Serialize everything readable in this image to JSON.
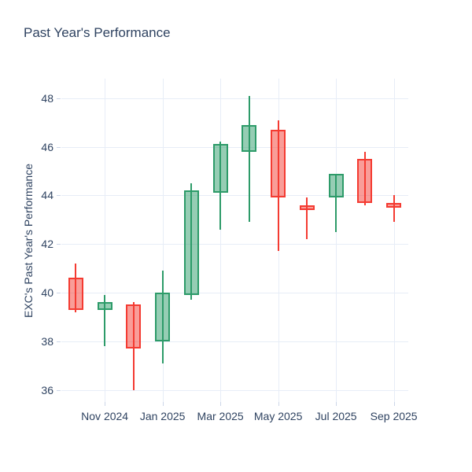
{
  "title": "Past Year's Performance",
  "colors": {
    "background": "#ffffff",
    "text": "#2f4361",
    "gridline": "#e7edf7",
    "tick": "#ccd6e8",
    "increasing_line": "#2d9b69",
    "increasing_fill": "rgba(45,155,105,0.5)",
    "decreasing_line": "#f43b32",
    "decreasing_fill": "rgba(244,59,50,0.5)"
  },
  "chart_data": {
    "type": "candlestick",
    "title": "Past Year's Performance",
    "xlabel": "",
    "ylabel": "EXC's Past Year's Performance",
    "ylim": [
      35.5,
      48.8
    ],
    "y_ticks": [
      36,
      38,
      40,
      42,
      44,
      46,
      48
    ],
    "x_ticks": [
      {
        "label": "Nov 2024",
        "month_index": 1
      },
      {
        "label": "Jan 2025",
        "month_index": 3
      },
      {
        "label": "Mar 2025",
        "month_index": 5
      },
      {
        "label": "May 2025",
        "month_index": 7
      },
      {
        "label": "Jul 2025",
        "month_index": 9
      },
      {
        "label": "Sep 2025",
        "month_index": 11
      }
    ],
    "grid": true,
    "legend": "none",
    "candles": [
      {
        "month": "Oct 2024",
        "open": 40.6,
        "high": 41.2,
        "low": 39.2,
        "close": 39.3,
        "direction": "down"
      },
      {
        "month": "Nov 2024",
        "open": 39.3,
        "high": 39.9,
        "low": 37.8,
        "close": 39.6,
        "direction": "up"
      },
      {
        "month": "Dec 2024",
        "open": 39.5,
        "high": 39.6,
        "low": 36.0,
        "close": 37.7,
        "direction": "down"
      },
      {
        "month": "Jan 2025",
        "open": 38.0,
        "high": 40.9,
        "low": 37.1,
        "close": 40.0,
        "direction": "up"
      },
      {
        "month": "Feb 2025",
        "open": 39.9,
        "high": 44.5,
        "low": 39.7,
        "close": 44.2,
        "direction": "up"
      },
      {
        "month": "Mar 2025",
        "open": 44.1,
        "high": 46.2,
        "low": 42.6,
        "close": 46.1,
        "direction": "up"
      },
      {
        "month": "Apr 2025",
        "open": 45.8,
        "high": 48.1,
        "low": 42.9,
        "close": 46.9,
        "direction": "up"
      },
      {
        "month": "May 2025",
        "open": 46.7,
        "high": 47.1,
        "low": 41.7,
        "close": 43.9,
        "direction": "down"
      },
      {
        "month": "Jun 2025",
        "open": 43.6,
        "high": 43.9,
        "low": 42.2,
        "close": 43.4,
        "direction": "down"
      },
      {
        "month": "Jul 2025",
        "open": 43.9,
        "high": 44.9,
        "low": 42.5,
        "close": 44.9,
        "direction": "up"
      },
      {
        "month": "Aug 2025",
        "open": 45.5,
        "high": 45.8,
        "low": 43.6,
        "close": 43.7,
        "direction": "down"
      },
      {
        "month": "Sep 2025",
        "open": 43.7,
        "high": 44.0,
        "low": 42.9,
        "close": 43.5,
        "direction": "down"
      }
    ]
  }
}
